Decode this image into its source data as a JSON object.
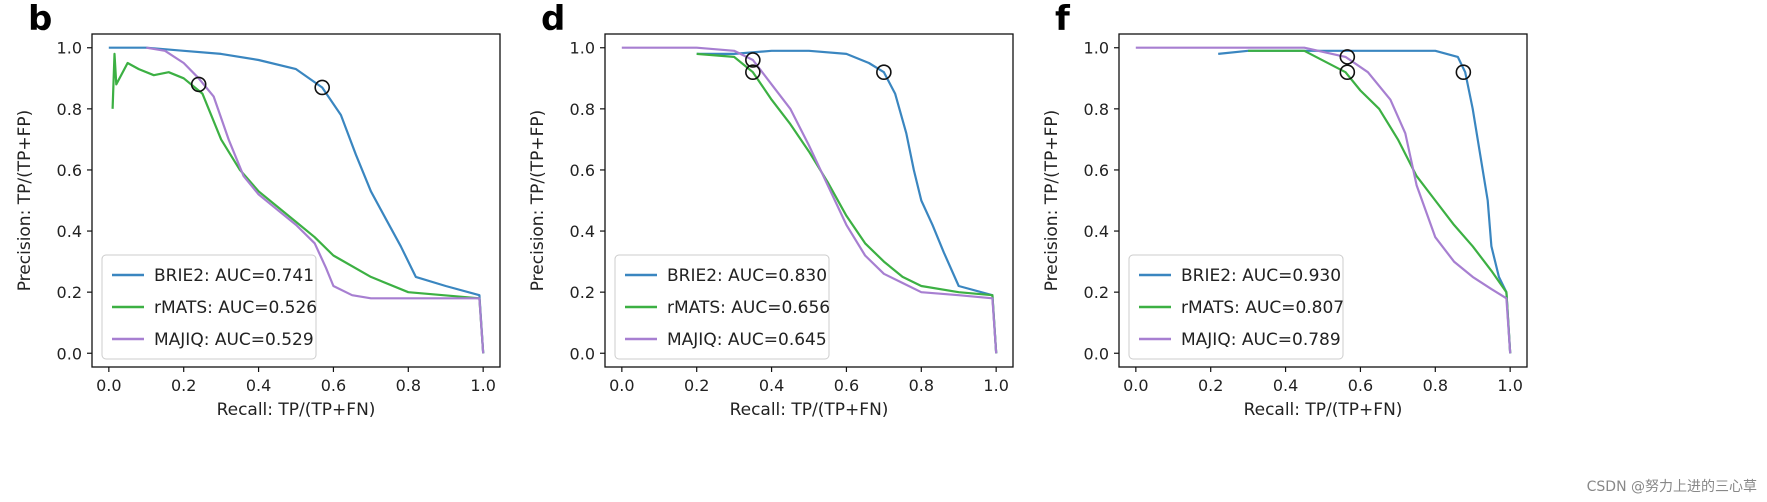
{
  "watermark": "CSDN @努力上进的三心草",
  "colors": {
    "BRIE2": "#3a86c0",
    "rMATS": "#3cb043",
    "MAJIQ": "#a77fd1"
  },
  "chart_data": [
    {
      "type": "line",
      "panel": "b",
      "xlabel": "Recall: TP/(TP+FN)",
      "ylabel": "Precision: TP/(TP+FP)",
      "xlim": [
        0,
        1
      ],
      "ylim": [
        0,
        1
      ],
      "xticks": [
        "0.0",
        "0.2",
        "0.4",
        "0.6",
        "0.8",
        "1.0"
      ],
      "yticks": [
        "0.0",
        "0.2",
        "0.4",
        "0.6",
        "0.8",
        "1.0"
      ],
      "legend_position": "lower-left",
      "markers": [
        {
          "x": 0.24,
          "y": 0.88
        },
        {
          "x": 0.57,
          "y": 0.87
        }
      ],
      "series": [
        {
          "name": "BRIE2",
          "label": "BRIE2: AUC=0.741",
          "x": [
            0.0,
            0.1,
            0.2,
            0.3,
            0.4,
            0.5,
            0.57,
            0.62,
            0.66,
            0.7,
            0.74,
            0.78,
            0.82,
            0.9,
            0.99,
            1.0
          ],
          "y": [
            1.0,
            1.0,
            0.99,
            0.98,
            0.96,
            0.93,
            0.87,
            0.78,
            0.65,
            0.53,
            0.44,
            0.35,
            0.25,
            0.22,
            0.19,
            0.0
          ]
        },
        {
          "name": "rMATS",
          "label": "rMATS: AUC=0.526",
          "x": [
            0.01,
            0.015,
            0.02,
            0.05,
            0.08,
            0.12,
            0.16,
            0.2,
            0.25,
            0.3,
            0.35,
            0.4,
            0.45,
            0.5,
            0.55,
            0.6,
            0.7,
            0.8,
            0.99,
            1.0
          ],
          "y": [
            0.8,
            0.98,
            0.88,
            0.95,
            0.93,
            0.91,
            0.92,
            0.9,
            0.85,
            0.7,
            0.6,
            0.53,
            0.48,
            0.43,
            0.38,
            0.32,
            0.25,
            0.2,
            0.18,
            0.0
          ]
        },
        {
          "name": "MAJIQ",
          "label": "MAJIQ: AUC=0.529",
          "x": [
            0.1,
            0.15,
            0.2,
            0.24,
            0.28,
            0.32,
            0.36,
            0.4,
            0.45,
            0.5,
            0.55,
            0.58,
            0.6,
            0.65,
            0.7,
            0.8,
            0.99,
            1.0
          ],
          "y": [
            1.0,
            0.99,
            0.95,
            0.9,
            0.84,
            0.7,
            0.58,
            0.52,
            0.47,
            0.42,
            0.36,
            0.28,
            0.22,
            0.19,
            0.18,
            0.18,
            0.18,
            0.0
          ]
        }
      ]
    },
    {
      "type": "line",
      "panel": "d",
      "xlabel": "Recall: TP/(TP+FN)",
      "ylabel": "Precision: TP/(TP+FP)",
      "xlim": [
        0,
        1
      ],
      "ylim": [
        0,
        1
      ],
      "xticks": [
        "0.0",
        "0.2",
        "0.4",
        "0.6",
        "0.8",
        "1.0"
      ],
      "yticks": [
        "0.0",
        "0.2",
        "0.4",
        "0.6",
        "0.8",
        "1.0"
      ],
      "legend_position": "lower-left",
      "markers": [
        {
          "x": 0.35,
          "y": 0.96
        },
        {
          "x": 0.35,
          "y": 0.92
        },
        {
          "x": 0.7,
          "y": 0.92
        }
      ],
      "series": [
        {
          "name": "BRIE2",
          "label": "BRIE2: AUC=0.830",
          "x": [
            0.2,
            0.3,
            0.4,
            0.5,
            0.6,
            0.66,
            0.7,
            0.73,
            0.76,
            0.78,
            0.8,
            0.83,
            0.86,
            0.9,
            0.99,
            1.0
          ],
          "y": [
            0.98,
            0.98,
            0.99,
            0.99,
            0.98,
            0.95,
            0.92,
            0.85,
            0.72,
            0.6,
            0.5,
            0.42,
            0.33,
            0.22,
            0.19,
            0.0
          ]
        },
        {
          "name": "rMATS",
          "label": "rMATS: AUC=0.656",
          "x": [
            0.2,
            0.3,
            0.35,
            0.4,
            0.45,
            0.5,
            0.55,
            0.6,
            0.65,
            0.7,
            0.75,
            0.8,
            0.9,
            0.99,
            1.0
          ],
          "y": [
            0.98,
            0.97,
            0.92,
            0.83,
            0.75,
            0.66,
            0.56,
            0.45,
            0.36,
            0.3,
            0.25,
            0.22,
            0.2,
            0.19,
            0.0
          ]
        },
        {
          "name": "MAJIQ",
          "label": "MAJIQ: AUC=0.645",
          "x": [
            0.0,
            0.2,
            0.3,
            0.35,
            0.4,
            0.45,
            0.5,
            0.55,
            0.6,
            0.65,
            0.7,
            0.75,
            0.8,
            0.9,
            0.99,
            1.0
          ],
          "y": [
            1.0,
            1.0,
            0.99,
            0.96,
            0.88,
            0.8,
            0.68,
            0.55,
            0.42,
            0.32,
            0.26,
            0.23,
            0.2,
            0.19,
            0.18,
            0.0
          ]
        }
      ]
    },
    {
      "type": "line",
      "panel": "f",
      "xlabel": "Recall: TP/(TP+FN)",
      "ylabel": "Precision: TP/(TP+FP)",
      "xlim": [
        0,
        1
      ],
      "ylim": [
        0,
        1
      ],
      "xticks": [
        "0.0",
        "0.2",
        "0.4",
        "0.6",
        "0.8",
        "1.0"
      ],
      "yticks": [
        "0.0",
        "0.2",
        "0.4",
        "0.6",
        "0.8",
        "1.0"
      ],
      "legend_position": "lower-left",
      "markers": [
        {
          "x": 0.565,
          "y": 0.97
        },
        {
          "x": 0.565,
          "y": 0.92
        },
        {
          "x": 0.875,
          "y": 0.92
        }
      ],
      "series": [
        {
          "name": "BRIE2",
          "label": "BRIE2: AUC=0.930",
          "x": [
            0.22,
            0.3,
            0.5,
            0.7,
            0.8,
            0.86,
            0.88,
            0.9,
            0.92,
            0.94,
            0.95,
            0.97,
            0.99,
            1.0
          ],
          "y": [
            0.98,
            0.99,
            0.99,
            0.99,
            0.99,
            0.97,
            0.92,
            0.8,
            0.65,
            0.5,
            0.35,
            0.25,
            0.2,
            0.0
          ]
        },
        {
          "name": "rMATS",
          "label": "rMATS: AUC=0.807",
          "x": [
            0.3,
            0.45,
            0.56,
            0.6,
            0.65,
            0.7,
            0.75,
            0.8,
            0.85,
            0.9,
            0.95,
            0.99,
            1.0
          ],
          "y": [
            0.99,
            0.99,
            0.92,
            0.86,
            0.8,
            0.7,
            0.58,
            0.5,
            0.42,
            0.35,
            0.27,
            0.2,
            0.0
          ]
        },
        {
          "name": "MAJIQ",
          "label": "MAJIQ: AUC=0.789",
          "x": [
            0.0,
            0.3,
            0.45,
            0.56,
            0.62,
            0.68,
            0.72,
            0.75,
            0.8,
            0.85,
            0.9,
            0.95,
            0.99,
            1.0
          ],
          "y": [
            1.0,
            1.0,
            1.0,
            0.97,
            0.92,
            0.83,
            0.72,
            0.55,
            0.38,
            0.3,
            0.25,
            0.21,
            0.18,
            0.0
          ]
        }
      ]
    }
  ]
}
